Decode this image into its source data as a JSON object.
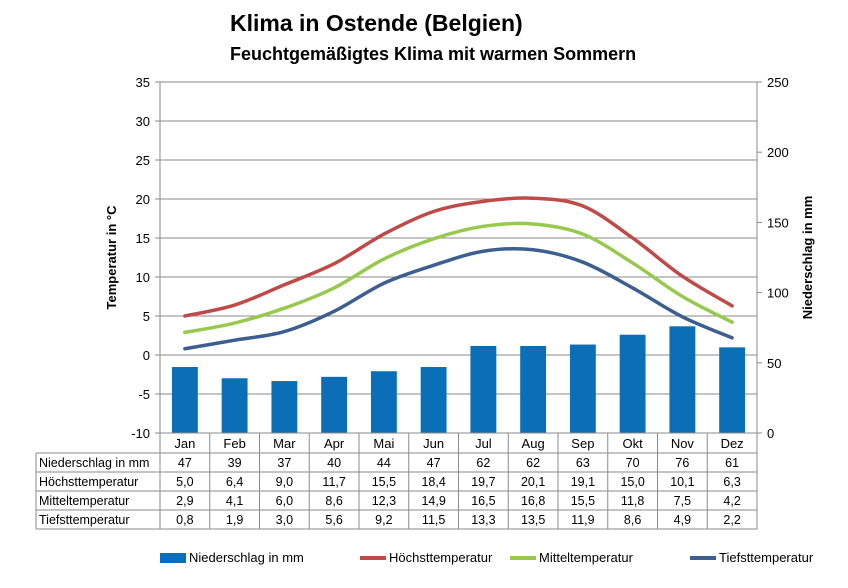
{
  "title": "Klima in Ostende (Belgien)",
  "subtitle": "Feuchtgemäßigtes Klima mit warmen Sommern",
  "chart_data": {
    "type": "bar+line",
    "categories": [
      "Jan",
      "Feb",
      "Mar",
      "Apr",
      "Mai",
      "Jun",
      "Jul",
      "Aug",
      "Sep",
      "Okt",
      "Nov",
      "Dez"
    ],
    "y_left": {
      "label": "Temperatur in °C",
      "min": -10,
      "max": 35,
      "step": 5
    },
    "y_right": {
      "label": "Niederschlag in mm",
      "min": 0,
      "max": 250,
      "step": 50
    },
    "grid": "horizontal",
    "legend_position": "bottom",
    "series": [
      {
        "name": "Niederschlag in mm",
        "type": "bar",
        "axis": "right",
        "color": "#0b6fb8",
        "values": [
          47,
          39,
          37,
          40,
          44,
          47,
          62,
          62,
          63,
          70,
          76,
          61
        ],
        "display": [
          "47",
          "39",
          "37",
          "40",
          "44",
          "47",
          "62",
          "62",
          "63",
          "70",
          "76",
          "61"
        ]
      },
      {
        "name": "Höchsttemperatur",
        "type": "line",
        "axis": "left",
        "color": "#be4b48",
        "values": [
          5.0,
          6.4,
          9.0,
          11.7,
          15.5,
          18.4,
          19.7,
          20.1,
          19.1,
          15.0,
          10.1,
          6.3
        ],
        "display": [
          "5,0",
          "6,4",
          "9,0",
          "11,7",
          "15,5",
          "18,4",
          "19,7",
          "20,1",
          "19,1",
          "15,0",
          "10,1",
          "6,3"
        ]
      },
      {
        "name": "Mitteltemperatur",
        "type": "line",
        "axis": "left",
        "color": "#98c94f",
        "values": [
          2.9,
          4.1,
          6.0,
          8.6,
          12.3,
          14.9,
          16.5,
          16.8,
          15.5,
          11.8,
          7.5,
          4.2
        ],
        "display": [
          "2,9",
          "4,1",
          "6,0",
          "8,6",
          "12,3",
          "14,9",
          "16,5",
          "16,8",
          "15,5",
          "11,8",
          "7,5",
          "4,2"
        ]
      },
      {
        "name": "Tiefsttemperatur",
        "type": "line",
        "axis": "left",
        "color": "#3d5f8f",
        "values": [
          0.8,
          1.9,
          3.0,
          5.6,
          9.2,
          11.5,
          13.3,
          13.5,
          11.9,
          8.6,
          4.9,
          2.2
        ],
        "display": [
          "0,8",
          "1,9",
          "3,0",
          "5,6",
          "9,2",
          "11,5",
          "13,3",
          "13,5",
          "11,9",
          "8,6",
          "4,9",
          "2,2"
        ]
      }
    ]
  }
}
